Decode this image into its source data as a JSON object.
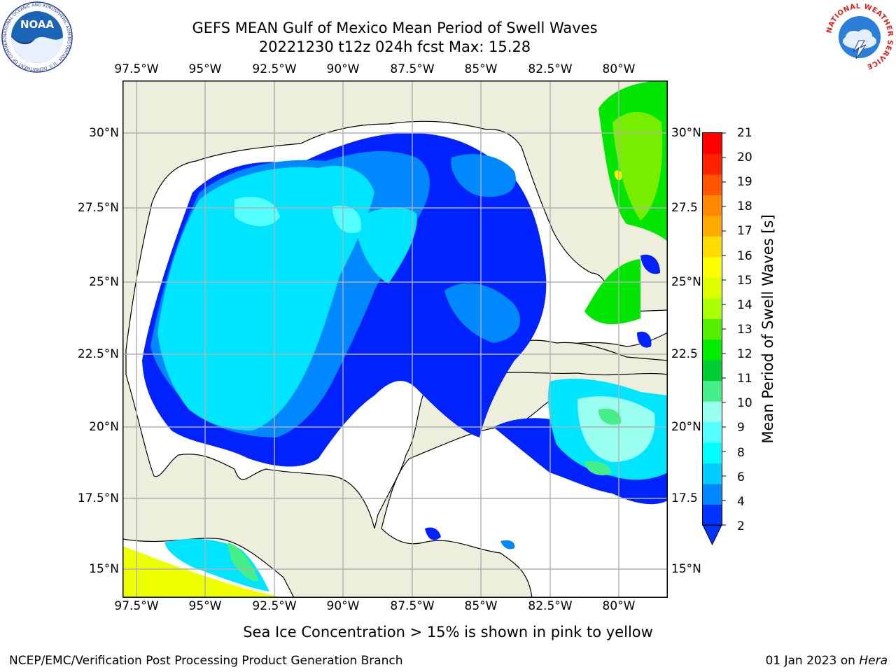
{
  "title": {
    "line1": "GEFS MEAN Gulf of Mexico Mean Period of Swell Waves",
    "line2": "20221230 t12z 024h fcst   Max: 15.28"
  },
  "axes": {
    "lon_labels": [
      "97.5°W",
      "95°W",
      "92.5°W",
      "90°W",
      "87.5°W",
      "85°W",
      "82.5°W",
      "80°W"
    ],
    "lat_labels_left": [
      "30°N",
      "27.5°N",
      "25°N",
      "22.5°N",
      "20°N",
      "17.5°N",
      "15°N"
    ],
    "lat_labels_right": [
      "30°N",
      "27.5",
      "25°N",
      "22.5",
      "20°N",
      "17.5",
      "15°N"
    ]
  },
  "colorbar": {
    "label": "Mean Period of Swell Waves [s]",
    "ticks": [
      "21",
      "20",
      "19",
      "18",
      "17",
      "16",
      "15",
      "14",
      "13",
      "12",
      "11",
      "10",
      "9",
      "8",
      "6",
      "4",
      "2"
    ],
    "colors_bottom_to_top": [
      "#0033ff",
      "#0088ff",
      "#00ccff",
      "#00ffff",
      "#55ffff",
      "#99ffee",
      "#44ee88",
      "#00cc33",
      "#00ee00",
      "#55ee00",
      "#aaff00",
      "#dfff00",
      "#ffff00",
      "#ffdd00",
      "#ffaa00",
      "#ff8800",
      "#ff5500",
      "#ff2200",
      "#ff0000"
    ]
  },
  "caption": "Sea Ice Concentration > 15% is shown in pink to yellow",
  "footer": {
    "left": "NCEP/EMC/Verification Post Processing Product Generation Branch",
    "right_date": "01 Jan 2023 on ",
    "right_host": "Hera"
  },
  "logos": {
    "noaa_text": "NOAA",
    "noaa_ring": "NATIONAL OCEANIC AND ATMOSPHERIC ADMINISTRATION · U.S. DEPARTMENT OF COMMERCE",
    "nws_ring": "NATIONAL WEATHER SERVICE"
  },
  "colors": {
    "land": "#eeeedc",
    "ocean": "#ffffff",
    "grid": "#b0b0b0"
  }
}
